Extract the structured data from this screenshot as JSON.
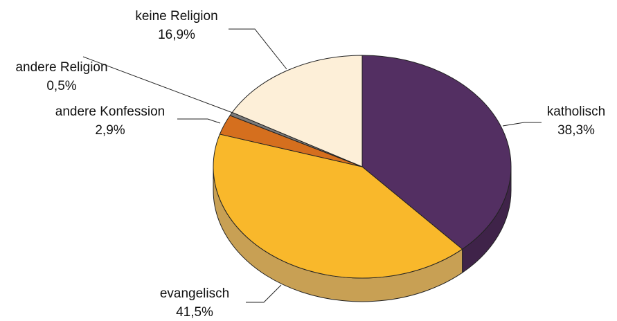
{
  "chart_data": {
    "type": "pie",
    "style": "3d",
    "slices": [
      {
        "label": "katholisch",
        "value": 38.3,
        "value_label": "38,3%",
        "color": "#532f62",
        "side_color": "#3f2349"
      },
      {
        "label": "evangelisch",
        "value": 41.5,
        "value_label": "41,5%",
        "color": "#f9b82b",
        "side_color": "#c8a054"
      },
      {
        "label": "andere Konfession",
        "value": 2.9,
        "value_label": "2,9%",
        "color": "#d56f1e",
        "side_color": "#a85818"
      },
      {
        "label": "andere Religion",
        "value": 0.5,
        "value_label": "0,5%",
        "color": "#7a7a7a",
        "side_color": "#5e5e5e"
      },
      {
        "label": "keine Religion",
        "value": 16.9,
        "value_label": "16,9%",
        "color": "#fdefd8",
        "side_color": "#e6d6bd"
      }
    ],
    "title": "",
    "legend": "none"
  }
}
